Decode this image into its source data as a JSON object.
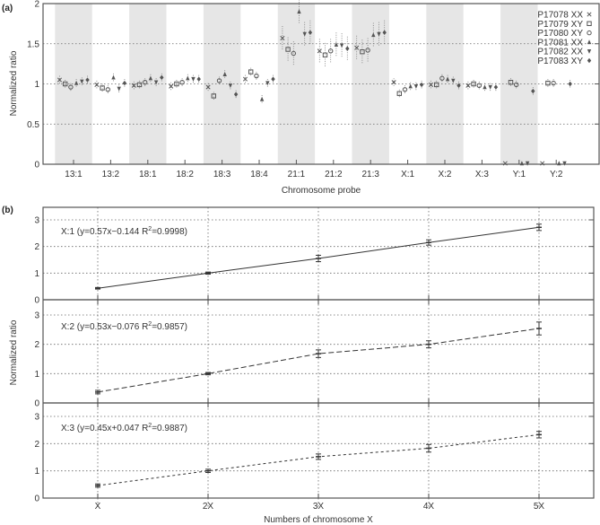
{
  "chart_data": [
    {
      "panel_label": "(a)",
      "type": "scatter",
      "title": "",
      "xlabel": "Chromosome probe",
      "ylabel": "Normalized ratio",
      "ylim": [
        0,
        2
      ],
      "yticks": [
        "0",
        "0.5",
        "1",
        "1.5",
        "2"
      ],
      "grid": "horizontal dotted at 0.5, 1, 1.5",
      "legend_position": "top-right",
      "categories": [
        "13:1",
        "13:2",
        "18:1",
        "18:2",
        "18:3",
        "18:4",
        "21:1",
        "21:2",
        "21:3",
        "X:1",
        "X:2",
        "X:3",
        "Y:1",
        "Y:2"
      ],
      "shaded_categories": [
        "13:1",
        "18:1",
        "18:3",
        "21:1",
        "21:3",
        "X:2",
        "Y:1"
      ],
      "series": [
        {
          "name": "P17078 XX",
          "marker": "×",
          "values": [
            1.05,
            0.99,
            0.98,
            0.97,
            0.96,
            1.06,
            1.57,
            1.41,
            1.45,
            1.02,
            0.99,
            0.98,
            0.0,
            0.0
          ]
        },
        {
          "name": "P17079 XY",
          "marker": "□",
          "values": [
            1.0,
            0.95,
            0.99,
            1.0,
            0.85,
            1.15,
            1.43,
            1.36,
            1.4,
            0.88,
            0.99,
            1.0,
            1.02,
            1.01
          ]
        },
        {
          "name": "P17080 XY",
          "marker": "○",
          "values": [
            0.96,
            0.93,
            1.02,
            1.02,
            1.04,
            1.1,
            1.38,
            1.41,
            1.42,
            0.93,
            1.07,
            0.98,
            0.99,
            1.01
          ]
        },
        {
          "name": "P17081 XX",
          "marker": "▲",
          "values": [
            1.01,
            1.08,
            1.07,
            1.07,
            1.12,
            0.81,
            1.9,
            1.49,
            1.61,
            0.97,
            1.06,
            0.96,
            0.0,
            0.0
          ]
        },
        {
          "name": "P17082 XX",
          "marker": "▼",
          "values": [
            1.03,
            0.94,
            1.02,
            1.06,
            0.98,
            1.01,
            1.62,
            1.48,
            1.62,
            0.97,
            1.04,
            0.96,
            0.0,
            0.0
          ]
        },
        {
          "name": "P17083 XY",
          "marker": "◆",
          "values": [
            1.05,
            1.01,
            1.08,
            1.06,
            0.87,
            1.06,
            1.64,
            1.44,
            1.64,
            0.99,
            0.98,
            0.96,
            0.91,
            1.0
          ]
        }
      ]
    },
    {
      "panel_label": "(b)",
      "type": "line",
      "xlabel": "Numbers of chromosome X",
      "ylabel": "Normalized ratio",
      "categories": [
        "X",
        "2X",
        "3X",
        "4X",
        "5X"
      ],
      "ylim": [
        0,
        3
      ],
      "yticks": [
        "0",
        "1",
        "2",
        "3"
      ],
      "grid": "dotted both axes",
      "subplots": [
        {
          "name": "X:1",
          "annotation": "X:1 (y=0.57x−0.144  R",
          "r2": "=0.9998)",
          "values": [
            0.43,
            1.0,
            1.55,
            2.15,
            2.72
          ],
          "errors": [
            0.03,
            0.04,
            0.12,
            0.1,
            0.12
          ],
          "line_style": "solid"
        },
        {
          "name": "X:2",
          "annotation": "X:2 (y=0.53x−0.076  R",
          "r2": "=0.9857)",
          "values": [
            0.37,
            1.0,
            1.68,
            2.0,
            2.54
          ],
          "errors": [
            0.06,
            0.04,
            0.13,
            0.12,
            0.22
          ],
          "line_style": "dashed"
        },
        {
          "name": "X:3",
          "annotation": "X:3 (y=0.45x+0.047  R",
          "r2": "=0.9887)",
          "values": [
            0.46,
            1.0,
            1.52,
            1.83,
            2.33
          ],
          "errors": [
            0.06,
            0.06,
            0.1,
            0.14,
            0.12
          ],
          "line_style": "short-dashed"
        }
      ]
    }
  ],
  "labels": {
    "panel_a": "(a)",
    "panel_b": "(b)",
    "a_xlabel": "Chromosome probe",
    "a_ylabel": "Normalized ratio",
    "b_xlabel": "Numbers of chromosome X",
    "b_ylabel": "Normalized ratio",
    "r_sup": "2"
  }
}
